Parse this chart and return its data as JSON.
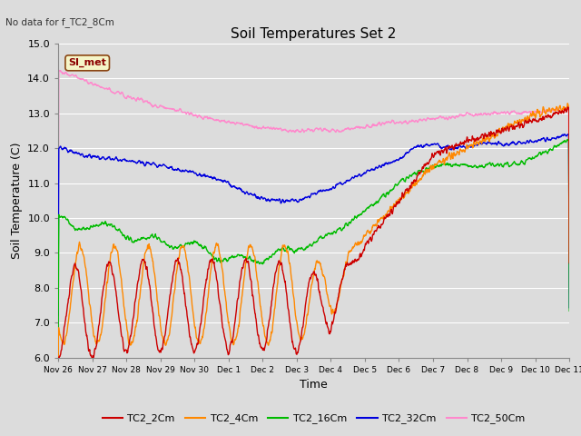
{
  "title": "Soil Temperatures Set 2",
  "subtitle": "No data for f_TC2_8Cm",
  "xlabel": "Time",
  "ylabel": "Soil Temperature (C)",
  "ylim": [
    6.0,
    15.0
  ],
  "yticks": [
    6.0,
    7.0,
    8.0,
    9.0,
    10.0,
    11.0,
    12.0,
    13.0,
    14.0,
    15.0
  ],
  "background_color": "#dcdcdc",
  "plot_bg_color": "#dcdcdc",
  "legend_box_color": "#f5f5c8",
  "legend_box_border": "#8B0000",
  "series": {
    "TC2_2Cm": {
      "color": "#cc0000",
      "lw": 1.0
    },
    "TC2_4Cm": {
      "color": "#ff8800",
      "lw": 1.0
    },
    "TC2_16Cm": {
      "color": "#00bb00",
      "lw": 1.0
    },
    "TC2_32Cm": {
      "color": "#0000dd",
      "lw": 1.0
    },
    "TC2_50Cm": {
      "color": "#ff88cc",
      "lw": 1.0
    }
  },
  "x_labels": [
    "Nov 26",
    "Nov 27",
    "Nov 28",
    "Nov 29",
    "Nov 30",
    "Dec 1",
    "Dec 2",
    "Dec 3",
    "Dec 4",
    "Dec 5",
    "Dec 6",
    "Dec 7",
    "Dec 8",
    "Dec 9",
    "Dec 10",
    "Dec 11"
  ]
}
